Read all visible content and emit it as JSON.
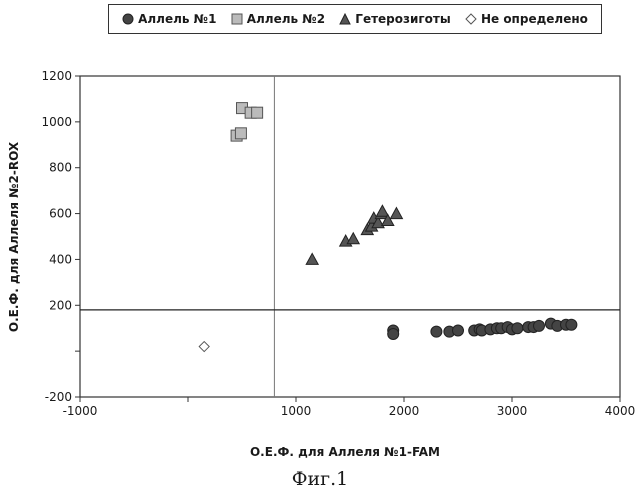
{
  "caption": "Фиг.1",
  "chart_data": {
    "type": "scatter",
    "title": "",
    "xlabel": "О.Е.Ф. для Аллеля №1-FAM",
    "ylabel": "О.Е.Ф. для Аллеля №2-ROX",
    "xlim": [
      -1000,
      4000
    ],
    "ylim": [
      -200,
      1200
    ],
    "xticks": [
      -1000,
      0,
      1000,
      2000,
      3000,
      4000
    ],
    "xtick_labels": [
      "-1000",
      "",
      "1000",
      "2000",
      "3000",
      "4000"
    ],
    "yticks": [
      -200,
      0,
      200,
      400,
      600,
      800,
      1000,
      1200
    ],
    "ytick_labels": [
      "-200",
      "",
      "200",
      "400",
      "600",
      "800",
      "1000",
      "1200"
    ],
    "threshold_lines": {
      "x": 800,
      "y": 180
    },
    "grid": false,
    "legend_position": "top",
    "series": [
      {
        "name": "Аллель №1",
        "marker": "circle",
        "color": "#444444",
        "points": [
          [
            1900,
            90
          ],
          [
            1900,
            75
          ],
          [
            2300,
            85
          ],
          [
            2420,
            85
          ],
          [
            2500,
            90
          ],
          [
            2650,
            90
          ],
          [
            2700,
            95
          ],
          [
            2720,
            90
          ],
          [
            2800,
            95
          ],
          [
            2860,
            100
          ],
          [
            2900,
            100
          ],
          [
            2960,
            105
          ],
          [
            3000,
            95
          ],
          [
            3050,
            100
          ],
          [
            3150,
            105
          ],
          [
            3200,
            105
          ],
          [
            3250,
            110
          ],
          [
            3360,
            120
          ],
          [
            3420,
            110
          ],
          [
            3500,
            115
          ],
          [
            3550,
            115
          ]
        ]
      },
      {
        "name": "Аллель №2",
        "marker": "square",
        "color": "#bbbbbb",
        "points": [
          [
            450,
            940
          ],
          [
            490,
            950
          ],
          [
            500,
            1060
          ],
          [
            580,
            1040
          ],
          [
            640,
            1040
          ]
        ]
      },
      {
        "name": "Гетерозиготы",
        "marker": "triangle",
        "color": "#555555",
        "points": [
          [
            1150,
            400
          ],
          [
            1460,
            480
          ],
          [
            1530,
            490
          ],
          [
            1660,
            530
          ],
          [
            1700,
            545
          ],
          [
            1720,
            580
          ],
          [
            1760,
            560
          ],
          [
            1790,
            600
          ],
          [
            1800,
            610
          ],
          [
            1850,
            570
          ],
          [
            1930,
            600
          ]
        ]
      },
      {
        "name": "Не определено",
        "marker": "diamond",
        "color": "#ffffff",
        "points": [
          [
            150,
            20
          ]
        ]
      }
    ]
  }
}
